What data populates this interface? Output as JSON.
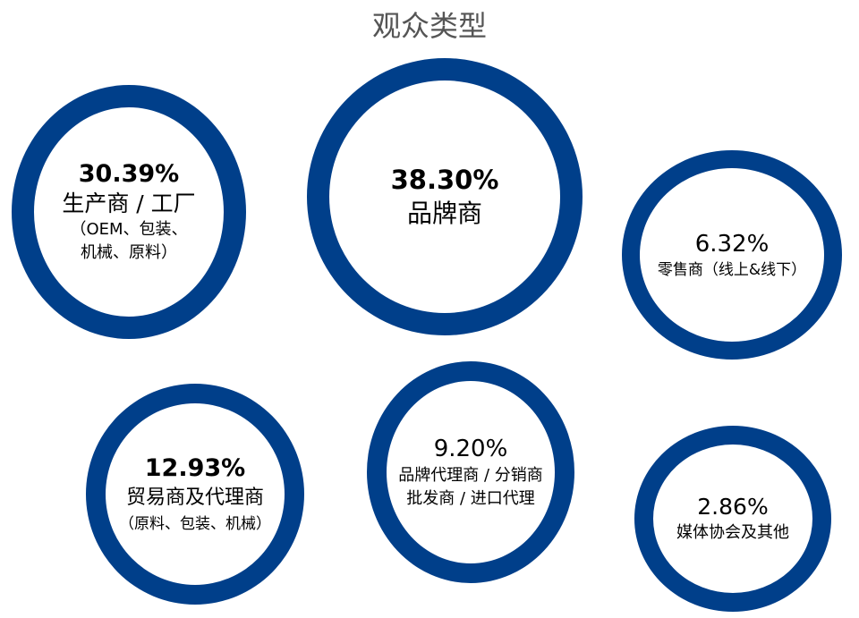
{
  "chart_data": {
    "type": "bubble-ring",
    "title": "观众类型",
    "ring_color": "#003f8a",
    "title_color": "#555555",
    "categories": [
      "生产商 / 工厂（OEM、包装、机械、原料）",
      "品牌商",
      "零售商（线上&线下）",
      "贸易商及代理商（原料、包装、机械）",
      "品牌代理商 / 分销商 批发商 / 进口代理",
      "媒体协会及其他"
    ],
    "values": [
      30.39,
      38.3,
      6.32,
      12.93,
      9.2,
      2.86
    ],
    "unit": "%",
    "items": [
      {
        "percent": "30.39%",
        "label": "生产商 / 工厂",
        "sub1": "（OEM、包装、",
        "sub2": "机械、原料）"
      },
      {
        "percent": "38.30%",
        "label": "品牌商"
      },
      {
        "percent": "6.32%",
        "label": "零售商（线上&线下）"
      },
      {
        "percent": "12.93%",
        "label": "贸易商及代理商",
        "sub1": "（原料、包装、机械）"
      },
      {
        "percent": "9.20%",
        "label": "品牌代理商 / 分销商",
        "label2": "批发商 / 进口代理"
      },
      {
        "percent": "2.86%",
        "label": "媒体协会及其他"
      }
    ]
  }
}
